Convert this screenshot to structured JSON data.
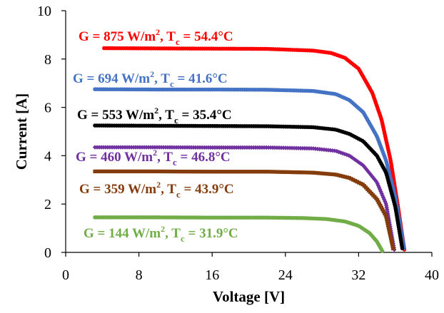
{
  "chart_data": {
    "type": "scatter",
    "xlabel": "Voltage [V]",
    "ylabel": "Current [A]",
    "xlim": [
      0,
      40
    ],
    "ylim": [
      0,
      10
    ],
    "xticks": [
      "0",
      "8",
      "16",
      "24",
      "32",
      "40"
    ],
    "yticks": [
      "0",
      "2",
      "4",
      "6",
      "8",
      "10"
    ],
    "grid": false,
    "legend": "none",
    "series": [
      {
        "color": "#ff0000",
        "marker": "circle",
        "label": {
          "g": "G = 875 W/m",
          "sup": "2",
          "t": ", T",
          "sub": "c",
          "val": " = 54.4°C"
        },
        "isc": 8.45,
        "voc": 37.0,
        "v_start": 4.2,
        "points": [
          [
            4.2,
            8.45
          ],
          [
            10,
            8.44
          ],
          [
            16,
            8.43
          ],
          [
            22,
            8.42
          ],
          [
            27,
            8.35
          ],
          [
            29,
            8.25
          ],
          [
            30.5,
            8.05
          ],
          [
            32,
            7.6
          ],
          [
            33.5,
            6.6
          ],
          [
            34.5,
            5.5
          ],
          [
            35.5,
            3.8
          ],
          [
            36.3,
            1.9
          ],
          [
            37.0,
            0.1
          ]
        ]
      },
      {
        "color": "#4472c4",
        "marker": "circle",
        "label": {
          "g": "G = 694 W/m",
          "sup": "2",
          "t": ", T",
          "sub": "c",
          "val": " = 41.6°C"
        },
        "isc": 6.75,
        "voc": 37.0,
        "v_start": 3.2,
        "points": [
          [
            3.2,
            6.75
          ],
          [
            10,
            6.74
          ],
          [
            16,
            6.74
          ],
          [
            22,
            6.73
          ],
          [
            27,
            6.68
          ],
          [
            29.5,
            6.55
          ],
          [
            31,
            6.3
          ],
          [
            32.5,
            5.8
          ],
          [
            34,
            4.8
          ],
          [
            35,
            3.8
          ],
          [
            36,
            2.3
          ],
          [
            37.0,
            0.1
          ]
        ]
      },
      {
        "color": "#000000",
        "marker": "circle",
        "label": {
          "g": "G = 553 W/m",
          "sup": "2",
          "t": ", T",
          "sub": "c",
          "val": " = 35.4°C"
        },
        "isc": 5.25,
        "voc": 36.8,
        "v_start": 3.2,
        "points": [
          [
            3.2,
            5.25
          ],
          [
            10,
            5.24
          ],
          [
            16,
            5.23
          ],
          [
            22,
            5.22
          ],
          [
            27,
            5.18
          ],
          [
            29.5,
            5.08
          ],
          [
            31,
            4.9
          ],
          [
            32.5,
            4.6
          ],
          [
            34,
            4.0
          ],
          [
            35,
            3.3
          ],
          [
            36,
            1.9
          ],
          [
            36.8,
            0.1
          ]
        ]
      },
      {
        "color": "#7030a0",
        "marker": "diamond",
        "label": {
          "g": "G = 460 W/m",
          "sup": "2",
          "t": ", T",
          "sub": "c",
          "val": " = 46.8°C"
        },
        "isc": 4.35,
        "voc": 35.9,
        "v_start": 3.2,
        "points": [
          [
            3.2,
            4.35
          ],
          [
            10,
            4.35
          ],
          [
            16,
            4.34
          ],
          [
            22,
            4.34
          ],
          [
            27,
            4.3
          ],
          [
            29.5,
            4.2
          ],
          [
            31,
            4.0
          ],
          [
            32.5,
            3.6
          ],
          [
            34,
            2.9
          ],
          [
            35,
            2.0
          ],
          [
            35.9,
            0.1
          ]
        ]
      },
      {
        "color": "#843c0c",
        "marker": "square",
        "label": {
          "g": "G = 359 W/m",
          "sup": "2",
          "t": ", T",
          "sub": "c",
          "val": " = 43.9°C"
        },
        "isc": 3.35,
        "voc": 35.8,
        "v_start": 3.2,
        "points": [
          [
            3.2,
            3.35
          ],
          [
            10,
            3.35
          ],
          [
            16,
            3.34
          ],
          [
            22,
            3.34
          ],
          [
            27,
            3.3
          ],
          [
            29.5,
            3.22
          ],
          [
            31,
            3.08
          ],
          [
            32.5,
            2.8
          ],
          [
            34,
            2.2
          ],
          [
            35,
            1.5
          ],
          [
            35.8,
            0.1
          ]
        ]
      },
      {
        "color": "#70ad47",
        "marker": "circle",
        "label": {
          "g": "G = 144 W/m",
          "sup": "2",
          "t": ", T",
          "sub": "c",
          "val": " = 31.9°C"
        },
        "isc": 1.45,
        "voc": 34.6,
        "v_start": 3.2,
        "points": [
          [
            3.2,
            1.45
          ],
          [
            10,
            1.45
          ],
          [
            16,
            1.44
          ],
          [
            22,
            1.44
          ],
          [
            26,
            1.42
          ],
          [
            28.5,
            1.38
          ],
          [
            30.5,
            1.28
          ],
          [
            32,
            1.1
          ],
          [
            33.2,
            0.8
          ],
          [
            34,
            0.45
          ],
          [
            34.6,
            0.05
          ]
        ]
      }
    ]
  }
}
